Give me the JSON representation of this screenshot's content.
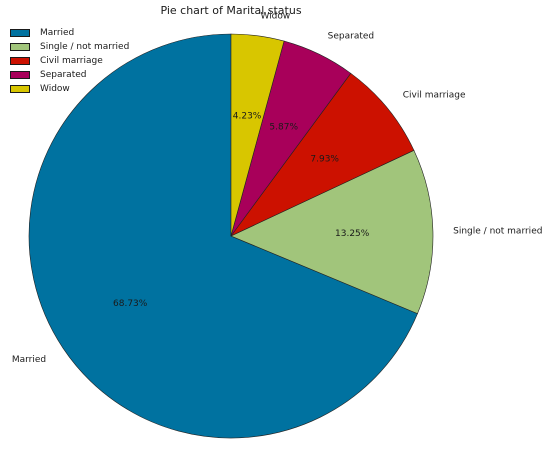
{
  "chart_data": {
    "type": "pie",
    "title": "Pie chart of Marital status",
    "categories": [
      "Married",
      "Single / not married",
      "Civil marriage",
      "Separated",
      "Widow"
    ],
    "values": [
      68.73,
      13.25,
      7.93,
      5.87,
      4.23
    ],
    "percent_labels": [
      "68.73%",
      "13.25%",
      "7.93%",
      "5.87%",
      "4.23%"
    ],
    "colors": [
      "#0072a0",
      "#a1c57b",
      "#cc1100",
      "#a8005a",
      "#d8c600"
    ],
    "start_angle_deg": 90,
    "direction": "counterclockwise",
    "legend": {
      "position": "upper-left",
      "entries": [
        "Married",
        "Single / not married",
        "Civil marriage",
        "Separated",
        "Widow"
      ]
    }
  }
}
